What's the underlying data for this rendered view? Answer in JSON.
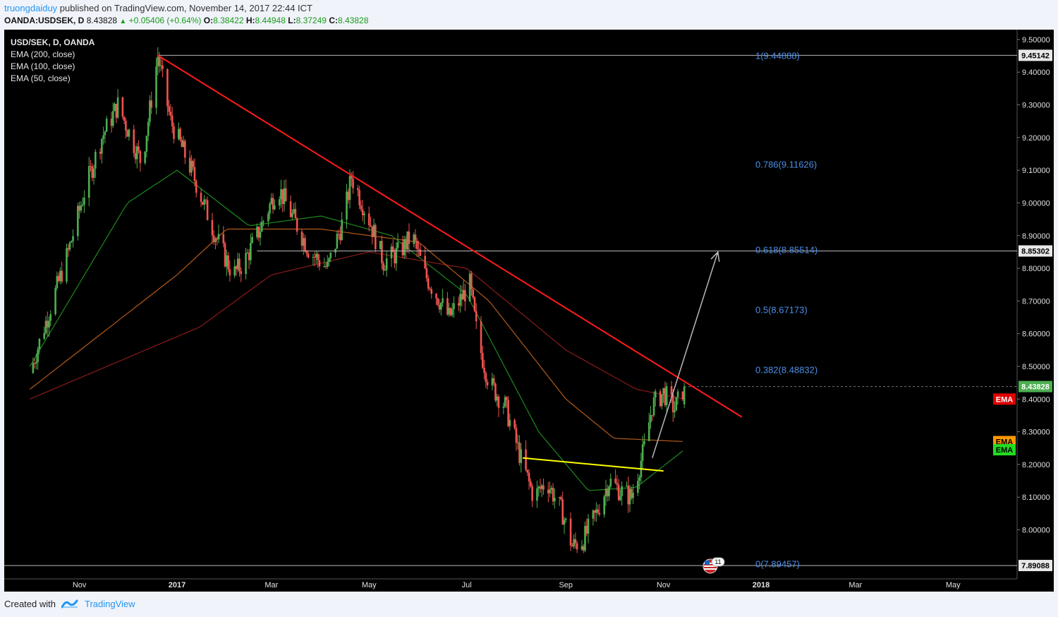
{
  "header": {
    "author": "truongdaiduy",
    "published_text": "published on TradingView.com, November 14, 2017 22:44 ICT",
    "symbol": "OANDA:USDSEK, D",
    "last": "8.43828",
    "change": "+0.05406 (+0.64%)",
    "open_label": "O:",
    "open": "8.38422",
    "high_label": "H:",
    "high": "8.44948",
    "low_label": "L:",
    "low": "8.37249",
    "close_label": "C:",
    "close": "8.43828"
  },
  "legend": {
    "title": "USD/SEK, D, OANDA",
    "items": [
      "EMA (200, close)",
      "EMA (100, close)",
      "EMA (50, close)"
    ]
  },
  "footer": {
    "created_with": "Created with",
    "brand": "TradingView"
  },
  "event_badge": "11",
  "colors": {
    "up": "#4caf50",
    "down": "#ef5350",
    "trendline": "#ff1a1a",
    "neckline": "#ffff00",
    "fib_text": "#4c8ee6",
    "ema200": "#8a1a1a",
    "ema100": "#b35a1a",
    "ema50": "#1d8a1d"
  },
  "chart_data": {
    "type": "candlestick",
    "symbol": "USD/SEK",
    "timeframe": "D",
    "ylim": [
      7.85,
      9.53
    ],
    "y_ticks": [
      "9.50000",
      "9.40000",
      "9.30000",
      "9.20000",
      "9.10000",
      "9.00000",
      "8.90000",
      "8.80000",
      "8.70000",
      "8.60000",
      "8.50000",
      "8.40000",
      "8.30000",
      "8.20000",
      "8.10000",
      "8.00000"
    ],
    "x_ticks": [
      "Nov",
      "2017",
      "Mar",
      "May",
      "Jul",
      "Sep",
      "Nov",
      "2018",
      "Mar",
      "May"
    ],
    "price_labels": [
      {
        "text": "9.45142",
        "value": 9.45142,
        "color": "#e8e8e8",
        "fg": "#000"
      },
      {
        "text": "8.85302",
        "value": 8.85302,
        "color": "#e8e8e8",
        "fg": "#000"
      },
      {
        "text": "8.43828",
        "value": 8.43828,
        "color": "#4caf50",
        "fg": "#fff"
      },
      {
        "text": "EMA",
        "value": 8.4,
        "color": "#e00000",
        "fg": "#fff"
      },
      {
        "text": "EMA",
        "value": 8.27,
        "color": "#ff9800",
        "fg": "#000"
      },
      {
        "text": "EMA",
        "value": 8.245,
        "color": "#22dd22",
        "fg": "#000"
      },
      {
        "text": "7.89088",
        "value": 7.89088,
        "color": "#e8e8e8",
        "fg": "#000"
      }
    ],
    "fib_levels": [
      {
        "ratio": "1",
        "value": 9.44888,
        "label": "1(9.44888)"
      },
      {
        "ratio": "0.786",
        "value": 9.11626,
        "label": "0.786(9.11626)"
      },
      {
        "ratio": "0.618",
        "value": 8.85514,
        "label": "0.618(8.85514)"
      },
      {
        "ratio": "0.5",
        "value": 8.67173,
        "label": "0.5(8.67173)"
      },
      {
        "ratio": "0.382",
        "value": 8.48832,
        "label": "0.382(8.48832)"
      },
      {
        "ratio": "0",
        "value": 7.89457,
        "label": "0(7.89457)"
      }
    ],
    "price_path": [
      [
        "2016-10-01",
        8.48
      ],
      [
        "2016-10-10",
        8.62
      ],
      [
        "2016-10-25",
        8.85
      ],
      [
        "2016-11-05",
        9.05
      ],
      [
        "2016-11-15",
        9.2
      ],
      [
        "2016-11-25",
        9.3
      ],
      [
        "2016-12-05",
        9.18
      ],
      [
        "2016-12-10",
        9.12
      ],
      [
        "2016-12-20",
        9.45
      ],
      [
        "2016-12-28",
        9.25
      ],
      [
        "2017-01-10",
        9.1
      ],
      [
        "2017-01-25",
        8.9
      ],
      [
        "2017-02-05",
        8.78
      ],
      [
        "2017-02-12",
        8.82
      ],
      [
        "2017-02-20",
        8.9
      ],
      [
        "2017-03-05",
        9.05
      ],
      [
        "2017-03-15",
        8.95
      ],
      [
        "2017-03-25",
        8.85
      ],
      [
        "2017-04-05",
        8.8
      ],
      [
        "2017-04-15",
        8.95
      ],
      [
        "2017-04-20",
        9.08
      ],
      [
        "2017-05-01",
        8.95
      ],
      [
        "2017-05-10",
        8.82
      ],
      [
        "2017-05-20",
        8.85
      ],
      [
        "2017-05-28",
        8.9
      ],
      [
        "2017-06-05",
        8.78
      ],
      [
        "2017-06-20",
        8.65
      ],
      [
        "2017-07-03",
        8.75
      ],
      [
        "2017-07-08",
        8.58
      ],
      [
        "2017-07-15",
        8.45
      ],
      [
        "2017-07-25",
        8.38
      ],
      [
        "2017-08-05",
        8.2
      ],
      [
        "2017-08-12",
        8.1
      ],
      [
        "2017-08-20",
        8.15
      ],
      [
        "2017-08-30",
        8.05
      ],
      [
        "2017-09-05",
        7.95
      ],
      [
        "2017-09-12",
        7.97
      ],
      [
        "2017-09-20",
        8.05
      ],
      [
        "2017-09-28",
        8.15
      ],
      [
        "2017-10-05",
        8.12
      ],
      [
        "2017-10-12",
        8.1
      ],
      [
        "2017-10-20",
        8.25
      ],
      [
        "2017-10-25",
        8.38
      ],
      [
        "2017-11-01",
        8.42
      ],
      [
        "2017-11-08",
        8.37
      ],
      [
        "2017-11-14",
        8.43828
      ]
    ],
    "ema200": [
      [
        "2016-10-01",
        8.4
      ],
      [
        "2017-01-15",
        8.62
      ],
      [
        "2017-03-01",
        8.78
      ],
      [
        "2017-05-01",
        8.85
      ],
      [
        "2017-07-01",
        8.8
      ],
      [
        "2017-09-01",
        8.55
      ],
      [
        "2017-10-15",
        8.43
      ],
      [
        "2017-11-14",
        8.4
      ]
    ],
    "ema100": [
      [
        "2016-10-01",
        8.43
      ],
      [
        "2017-01-01",
        8.78
      ],
      [
        "2017-02-01",
        8.92
      ],
      [
        "2017-04-01",
        8.92
      ],
      [
        "2017-06-01",
        8.88
      ],
      [
        "2017-07-15",
        8.7
      ],
      [
        "2017-09-01",
        8.4
      ],
      [
        "2017-10-01",
        8.28
      ],
      [
        "2017-11-14",
        8.27
      ]
    ],
    "ema50": [
      [
        "2016-10-01",
        8.5
      ],
      [
        "2016-12-01",
        9.0
      ],
      [
        "2017-01-01",
        9.1
      ],
      [
        "2017-02-15",
        8.93
      ],
      [
        "2017-04-01",
        8.96
      ],
      [
        "2017-05-15",
        8.9
      ],
      [
        "2017-07-01",
        8.72
      ],
      [
        "2017-08-15",
        8.3
      ],
      [
        "2017-09-15",
        8.12
      ],
      [
        "2017-10-15",
        8.13
      ],
      [
        "2017-11-14",
        8.245
      ]
    ],
    "trendline": [
      [
        "2016-12-20",
        9.45142
      ],
      [
        "2017-12-20",
        8.345
      ]
    ],
    "neckline": [
      [
        "2017-08-05",
        8.22
      ],
      [
        "2017-11-01",
        8.18
      ]
    ],
    "projection_arrow": [
      [
        "2017-10-25",
        8.22
      ],
      [
        "2017-12-05",
        8.85
      ]
    ],
    "hlines": [
      {
        "from": "2016-12-20",
        "value": 9.45142
      },
      {
        "from": "2017-02-20",
        "value": 8.85302
      },
      {
        "from": "2016-09-15",
        "value": 7.89088
      }
    ]
  }
}
